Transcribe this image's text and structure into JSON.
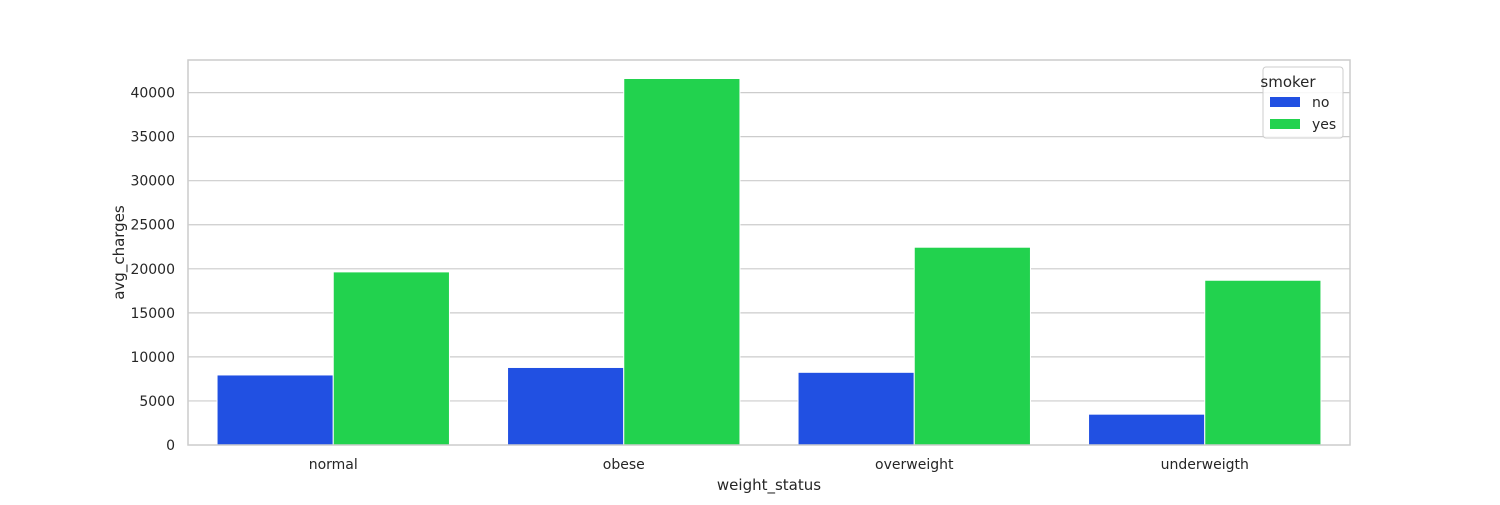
{
  "chart_data": {
    "type": "bar",
    "xlabel": "weight_status",
    "ylabel": "avg_charges",
    "categories": [
      "normal",
      "obese",
      "overweight",
      "underweigth"
    ],
    "series": [
      {
        "name": "no",
        "values": [
          7950,
          8800,
          8250,
          3500
        ],
        "color": "#2150e2"
      },
      {
        "name": "yes",
        "values": [
          19650,
          41600,
          22450,
          18700
        ],
        "color": "#22d24e"
      }
    ],
    "ylim": [
      0,
      43700
    ],
    "yticks": [
      0,
      5000,
      10000,
      15000,
      20000,
      25000,
      30000,
      35000,
      40000
    ],
    "grid": true,
    "legend": {
      "title": "smoker",
      "position": "top-right"
    }
  }
}
